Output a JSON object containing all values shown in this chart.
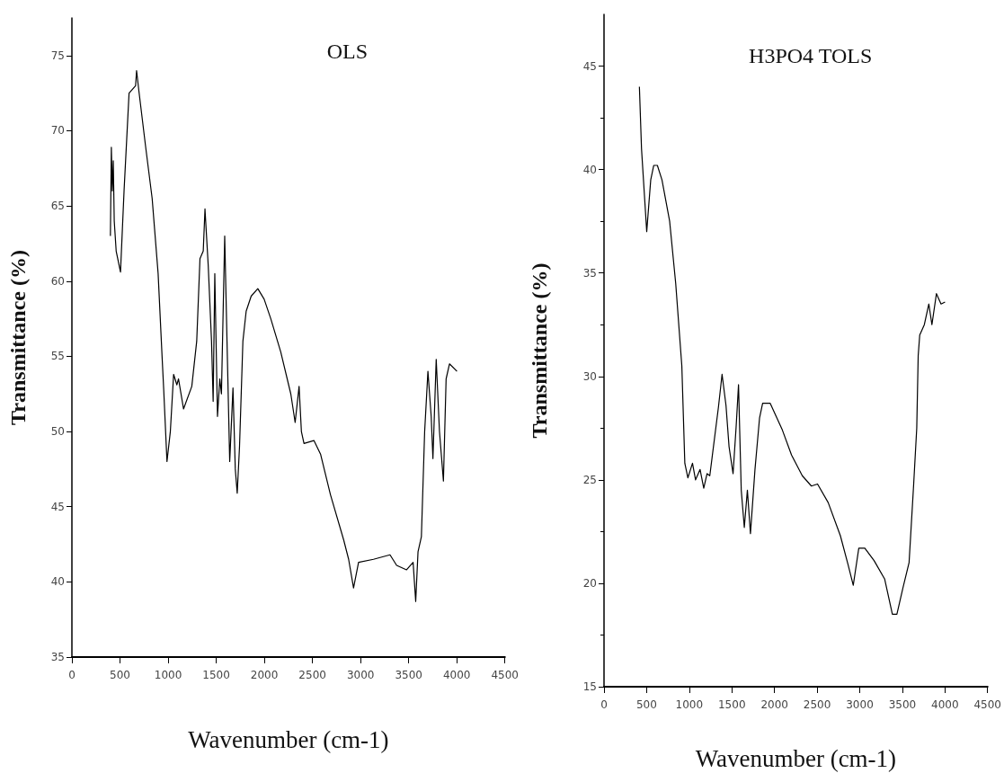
{
  "chart_data": [
    {
      "type": "line",
      "title": "OLS",
      "xlabel": "Wavenumber (cm-1)",
      "ylabel": "Transmittance (%)",
      "xlim": [
        0,
        4500
      ],
      "xticks": [
        0,
        500,
        1000,
        1500,
        2000,
        2500,
        3000,
        3500,
        4000,
        4500
      ],
      "ylim": [
        35,
        77.5
      ],
      "yticks": [
        35,
        40,
        45,
        50,
        55,
        60,
        65,
        70,
        75
      ],
      "grid": false,
      "x": [
        400,
        410,
        420,
        430,
        440,
        460,
        505,
        542,
        594,
        662,
        672,
        697,
        765,
        834,
        896,
        937,
        954,
        988,
        1023,
        1057,
        1091,
        1108,
        1160,
        1246,
        1297,
        1331,
        1365,
        1383,
        1417,
        1451,
        1468,
        1485,
        1513,
        1537,
        1554,
        1588,
        1612,
        1640,
        1674,
        1698,
        1718,
        1742,
        1777,
        1811,
        1863,
        1932,
        1998,
        2067,
        2170,
        2275,
        2320,
        2361,
        2385,
        2412,
        2515,
        2584,
        2687,
        2824,
        2876,
        2927,
        2979,
        3134,
        3306,
        3375,
        3478,
        3546,
        3573,
        3597,
        3632,
        3666,
        3700,
        3734,
        3752,
        3786,
        3820,
        3861,
        3889,
        3924,
        4002
      ],
      "series": [
        {
          "color": "#000000",
          "values": [
            63,
            68.9,
            66,
            68,
            64,
            62,
            60.6,
            66,
            72.5,
            73,
            74,
            72.6,
            69,
            65.5,
            60.5,
            55,
            52.8,
            48,
            50,
            53.8,
            53.1,
            53.5,
            51.5,
            53,
            56,
            61.5,
            62,
            64.8,
            61,
            56,
            52,
            60.5,
            51,
            53.5,
            52.5,
            63,
            56,
            48,
            52.9,
            47.5,
            45.9,
            49,
            56,
            58,
            59,
            59.5,
            58.8,
            57.5,
            55.3,
            52.5,
            50.6,
            53,
            50,
            49.2,
            49.4,
            48.5,
            45.8,
            42.8,
            41.5,
            39.6,
            41.3,
            41.5,
            41.8,
            41.1,
            40.8,
            41.3,
            38.7,
            42,
            43,
            50,
            54,
            51,
            48.2,
            54.8,
            50,
            46.7,
            53.5,
            54.5,
            54
          ]
        }
      ]
    },
    {
      "type": "line",
      "title": "H3PO4 TOLS",
      "xlabel": "Wavenumber (cm-1)",
      "ylabel": "Transmittance (%)",
      "xlim": [
        0,
        4500
      ],
      "xticks": [
        0,
        500,
        1000,
        1500,
        2000,
        2500,
        3000,
        3500,
        4000,
        4500
      ],
      "ylim": [
        15,
        47.5
      ],
      "yticks": [
        15,
        20,
        25,
        30,
        35,
        40,
        45
      ],
      "grid": false,
      "x": [
        415,
        440,
        501,
        548,
        583,
        626,
        680,
        770,
        841,
        913,
        948,
        984,
        1038,
        1074,
        1127,
        1170,
        1209,
        1241,
        1342,
        1385,
        1431,
        1467,
        1514,
        1549,
        1578,
        1610,
        1646,
        1682,
        1718,
        1771,
        1825,
        1861,
        1950,
        2093,
        2200,
        2326,
        2433,
        2505,
        2630,
        2773,
        2863,
        2924,
        2989,
        3060,
        3168,
        3293,
        3383,
        3436,
        3508,
        3579,
        3633,
        3669,
        3686,
        3704,
        3758,
        3811,
        3847,
        3900,
        3954,
        4001
      ],
      "series": [
        {
          "color": "#000000",
          "values": [
            44,
            41,
            37,
            39.5,
            40.2,
            40.2,
            39.5,
            37.5,
            34.5,
            30.5,
            25.8,
            25.1,
            25.8,
            25,
            25.5,
            24.6,
            25.3,
            25.2,
            28.5,
            30.1,
            28.6,
            26.6,
            25.3,
            27.5,
            29.6,
            24.5,
            22.7,
            24.5,
            22.4,
            25.5,
            28,
            28.7,
            28.7,
            27.4,
            26.2,
            25.2,
            24.7,
            24.8,
            23.9,
            22.3,
            20.9,
            19.9,
            21.7,
            21.7,
            21.1,
            20.2,
            18.5,
            18.5,
            19.8,
            21,
            24.8,
            27.5,
            31,
            32,
            32.5,
            33.5,
            32.5,
            34,
            33.5,
            33.6
          ]
        }
      ]
    }
  ]
}
